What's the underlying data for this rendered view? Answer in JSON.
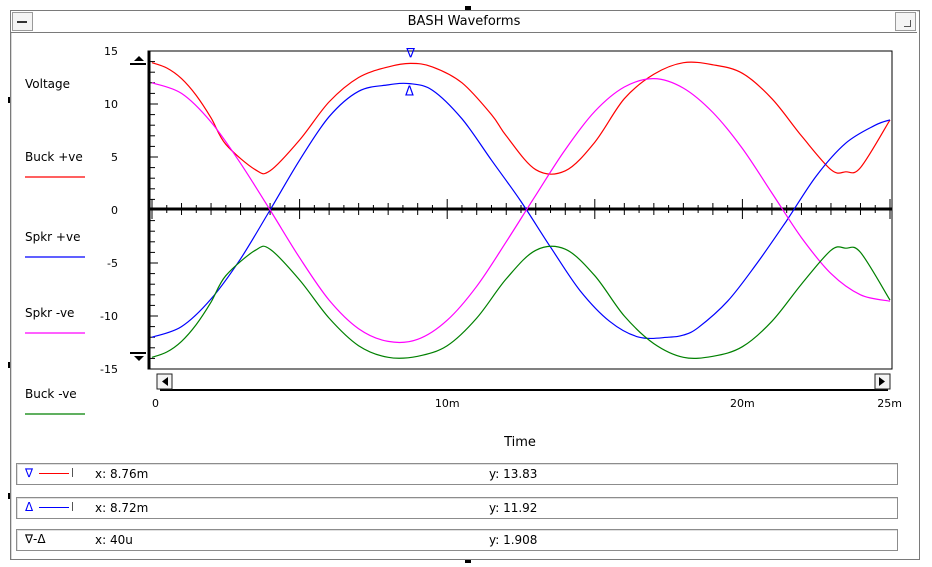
{
  "window": {
    "title": "BASH Waveforms"
  },
  "colors": {
    "buck_pos": "#ff0000",
    "spkr_pos": "#0000ff",
    "spkr_neg": "#ff00ff",
    "buck_neg": "#008000"
  },
  "chart_data": {
    "type": "line",
    "ylabel": "Voltage",
    "xlabel": "Time",
    "ylim": [
      -15,
      15
    ],
    "xlim": [
      0,
      0.025
    ],
    "yticks": [
      "15",
      "10",
      "5",
      "0",
      "-5",
      "-10",
      "-15"
    ],
    "xticks": [
      {
        "x": 0,
        "label": "0"
      },
      {
        "x": 0.01,
        "label": "10m"
      },
      {
        "x": 0.02,
        "label": "20m"
      },
      {
        "x": 0.025,
        "label": "25m"
      }
    ],
    "series": [
      {
        "name": "Buck +ve",
        "color": "#ff0000",
        "x": [
          0,
          0.0005,
          0.001,
          0.0015,
          0.002,
          0.0025,
          0.0035,
          0.004,
          0.005,
          0.006,
          0.007,
          0.008,
          0.00876,
          0.0095,
          0.0105,
          0.0115,
          0.012,
          0.013,
          0.014,
          0.015,
          0.016,
          0.017,
          0.018,
          0.019,
          0.02,
          0.021,
          0.022,
          0.023,
          0.0235,
          0.024,
          0.025
        ],
        "y": [
          13.9,
          13.4,
          12.4,
          10.8,
          8.7,
          6.2,
          3.8,
          3.7,
          6.6,
          10.2,
          12.5,
          13.5,
          13.83,
          13.5,
          12.0,
          9.0,
          7.0,
          3.8,
          3.7,
          6.4,
          10.5,
          12.8,
          13.9,
          13.7,
          12.9,
          10.5,
          7.0,
          3.8,
          3.6,
          4.0,
          8.5
        ]
      },
      {
        "name": "Spkr +ve",
        "color": "#0000ff",
        "x": [
          0,
          0.001,
          0.002,
          0.003,
          0.004,
          0.005,
          0.006,
          0.007,
          0.008,
          0.00872,
          0.0095,
          0.0105,
          0.0115,
          0.0125,
          0.0135,
          0.0145,
          0.0155,
          0.0165,
          0.0175,
          0.018,
          0.0185,
          0.0195,
          0.0205,
          0.0215,
          0.0225,
          0.0235,
          0.0245,
          0.025
        ],
        "y": [
          -12.0,
          -11.0,
          -8.4,
          -4.6,
          0.0,
          4.7,
          8.8,
          11.2,
          11.8,
          11.92,
          11.3,
          8.6,
          4.7,
          0.8,
          -3.5,
          -7.6,
          -10.5,
          -12.0,
          -12.0,
          -11.8,
          -11.1,
          -8.6,
          -5.0,
          -1.0,
          3.2,
          6.3,
          8.0,
          8.5
        ]
      },
      {
        "name": "Spkr -ve",
        "color": "#ff00ff",
        "x": [
          0,
          0.001,
          0.002,
          0.003,
          0.004,
          0.005,
          0.006,
          0.007,
          0.008,
          0.009,
          0.01,
          0.011,
          0.012,
          0.013,
          0.014,
          0.015,
          0.016,
          0.017,
          0.018,
          0.019,
          0.02,
          0.021,
          0.022,
          0.023,
          0.024,
          0.025
        ],
        "y": [
          12.0,
          11.0,
          8.3,
          4.4,
          0.0,
          -4.5,
          -8.5,
          -11.2,
          -12.4,
          -12.2,
          -10.4,
          -7.2,
          -3.0,
          1.4,
          5.7,
          9.3,
          11.6,
          12.4,
          11.5,
          9.2,
          5.8,
          1.6,
          -2.6,
          -6.0,
          -8.0,
          -8.6
        ]
      },
      {
        "name": "Buck -ve",
        "color": "#008000",
        "x": [
          0,
          0.0005,
          0.001,
          0.0015,
          0.002,
          0.0025,
          0.0035,
          0.004,
          0.005,
          0.006,
          0.007,
          0.008,
          0.009,
          0.01,
          0.011,
          0.012,
          0.013,
          0.014,
          0.015,
          0.016,
          0.017,
          0.018,
          0.019,
          0.02,
          0.021,
          0.022,
          0.023,
          0.0235,
          0.024,
          0.025
        ],
        "y": [
          -13.9,
          -13.4,
          -12.4,
          -10.8,
          -8.7,
          -6.2,
          -3.8,
          -3.7,
          -6.6,
          -10.2,
          -12.8,
          -13.9,
          -13.8,
          -12.8,
          -10.2,
          -6.5,
          -3.8,
          -3.7,
          -6.2,
          -10.0,
          -12.6,
          -13.9,
          -13.8,
          -12.9,
          -10.5,
          -7.0,
          -3.8,
          -3.6,
          -4.0,
          -8.5
        ]
      }
    ],
    "markers": [
      {
        "symbol": "∇",
        "series": "Buck +ve",
        "x": 0.00876,
        "y": 13.83
      },
      {
        "symbol": "Δ",
        "series": "Spkr +ve",
        "x": 0.00872,
        "y": 11.92
      }
    ]
  },
  "readouts": [
    {
      "symbol": "∇",
      "color": "#ff0000",
      "x": "x: 8.76m",
      "y": "y: 13.83"
    },
    {
      "symbol": "Δ",
      "color": "#0000ff",
      "x": "x: 8.72m",
      "y": "y: 11.92"
    },
    {
      "symbol": "∇-Δ",
      "color": "",
      "x": "x: 40u",
      "y": "y: 1.908"
    }
  ]
}
